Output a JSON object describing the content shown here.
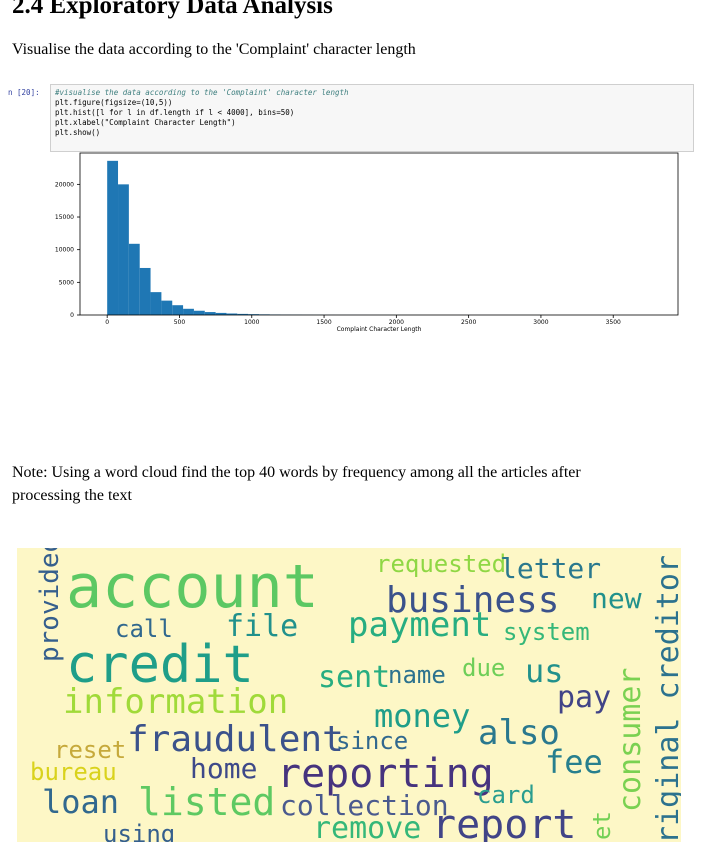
{
  "heading": "2.4 Exploratory Data Analysis",
  "paragraphs": [
    "Visualise the data according to the 'Complaint' character length",
    "Note: Using a word cloud find the top 40 words by frequency among all the articles after processing the text"
  ],
  "code_cell": {
    "prompt": "n [20]:",
    "lines": [
      "#visualise the data according to the 'Complaint' character length",
      "plt.figure(figsize=(10,5))",
      "plt.hist([l for l in df.length if l < 4000], bins=50)",
      "plt.xlabel(\"Complaint Character Length\")",
      "plt.show()"
    ]
  },
  "chart_data": {
    "type": "histogram",
    "xlabel": "Complaint Character Length",
    "color": "#1f77b4",
    "bins": [
      0,
      75,
      150,
      225,
      300,
      375,
      450,
      525,
      600,
      675,
      750,
      825,
      900,
      975,
      1050,
      1125,
      1200,
      1275,
      1350,
      1425,
      1500,
      1575,
      1650,
      1725,
      1800,
      1875,
      1950,
      2025,
      2100,
      2175,
      2250,
      2325,
      2400,
      2475,
      2550,
      2625,
      2700,
      2775,
      2850,
      2925,
      3000,
      3075,
      3150,
      3225,
      3300,
      3375,
      3450,
      3525,
      3600,
      3675,
      3750
    ],
    "values": [
      23600,
      20000,
      10900,
      7200,
      3500,
      2200,
      1500,
      950,
      650,
      450,
      320,
      230,
      170,
      130,
      100,
      80,
      60,
      50,
      40,
      30,
      25,
      20,
      18,
      15,
      12,
      10,
      9,
      8,
      7,
      6,
      5,
      5,
      4,
      4,
      3,
      3,
      3,
      2,
      2,
      2,
      2,
      1,
      1,
      1,
      1,
      1,
      1,
      1,
      1,
      1
    ],
    "xlim": [
      -188,
      3948
    ],
    "ylim": [
      0,
      24800
    ],
    "xticks": [
      0,
      500,
      1000,
      1500,
      2000,
      2500,
      3000,
      3500
    ],
    "yticks": [
      0,
      5000,
      10000,
      15000,
      20000
    ]
  },
  "wordcloud": {
    "words": [
      "account",
      "requested",
      "letter",
      "business",
      "new",
      "provided",
      "original creditor",
      "call",
      "file",
      "payment",
      "system",
      "credit",
      "sent",
      "name",
      "due",
      "us",
      "information",
      "pay",
      "consumer",
      "money",
      "also",
      "reset",
      "fraudulent",
      "since",
      "fee",
      "bureau",
      "home",
      "reporting",
      "card",
      "loan",
      "listed",
      "collection",
      "remove",
      "report",
      "using",
      "et"
    ]
  }
}
